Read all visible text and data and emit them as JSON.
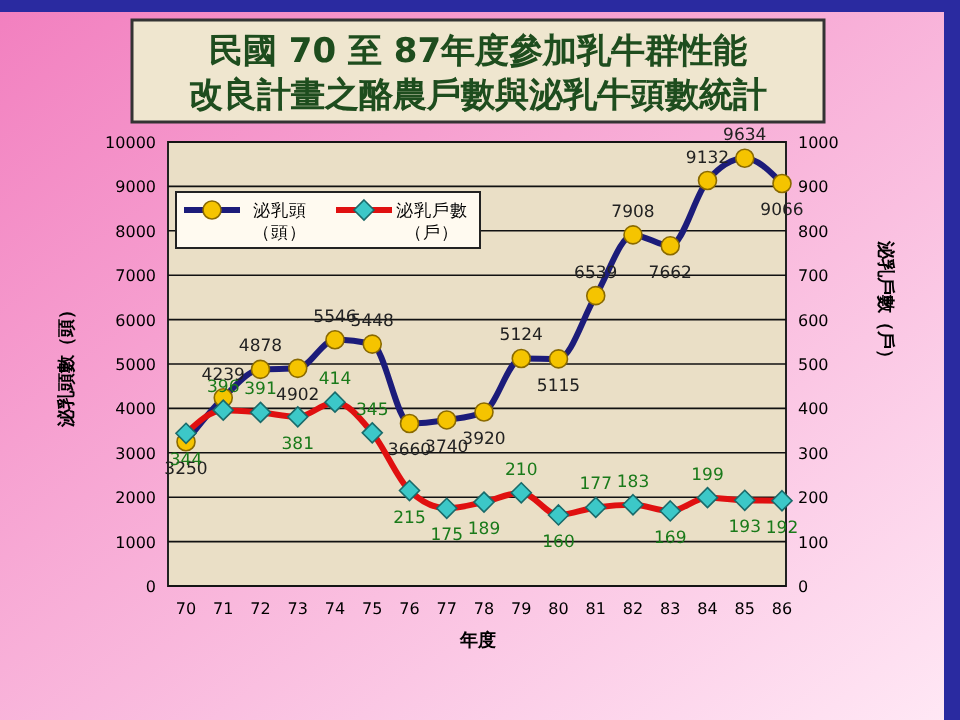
{
  "chart_data": {
    "type": "line",
    "title": "民國 70 至 87年度參加乳牛群性能改良計畫之酪農戶數與泌乳牛頭數統計",
    "xlabel": "年度",
    "ylabel": "泌乳頭數（頭）",
    "y2label": "泌乳戶數（戶）",
    "categories": [
      "70",
      "71",
      "72",
      "73",
      "74",
      "75",
      "76",
      "77",
      "78",
      "79",
      "80",
      "81",
      "82",
      "83",
      "84",
      "85",
      "86"
    ],
    "series": [
      {
        "name": "泌乳頭（頭）",
        "color": "#1c1c7a",
        "marker": "circle",
        "values": [
          3250,
          4239,
          4878,
          4902,
          5546,
          5448,
          3660,
          3740,
          3920,
          5124,
          5115,
          6539,
          7908,
          7662,
          9132,
          9634,
          9066
        ]
      },
      {
        "name": "泌乳戶數（戶）",
        "color": "#e01010",
        "marker": "diamond",
        "axis": "y2",
        "values": [
          344,
          396,
          391,
          381,
          414,
          345,
          215,
          175,
          189,
          210,
          160,
          177,
          183,
          169,
          199,
          193,
          192
        ]
      }
    ],
    "ylim": [
      0,
      10000
    ],
    "yticks": [
      0,
      1000,
      2000,
      3000,
      4000,
      5000,
      6000,
      7000,
      8000,
      9000,
      10000
    ],
    "y2lim": [
      0,
      1000
    ],
    "y2ticks": [
      0,
      100,
      200,
      300,
      400,
      500,
      600,
      700,
      800,
      900,
      1000
    ],
    "grid": "y",
    "legend": "top left",
    "data_labels": true
  }
}
